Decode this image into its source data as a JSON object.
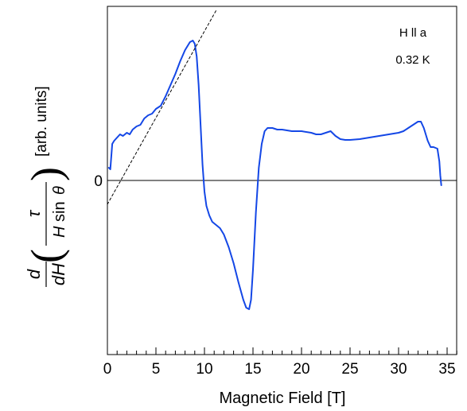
{
  "chart_data": {
    "type": "line",
    "xlabel": "Magnetic Field [T]",
    "ylabel": {
      "d": "d",
      "dH": "dH",
      "tau": "τ",
      "H": "H",
      "sin": "sin",
      "theta": "θ",
      "units": "[arb. units]"
    },
    "xlim": [
      0,
      36
    ],
    "ylim": [
      -1.0,
      1.0
    ],
    "x_ticks": [
      0,
      5,
      10,
      15,
      20,
      25,
      30,
      35
    ],
    "x_tick_labels": [
      "0",
      "5",
      "10",
      "15",
      "20",
      "25",
      "30",
      "35"
    ],
    "y_tick_labels": [
      {
        "value": 0,
        "label": "0"
      }
    ],
    "zero_line": true,
    "grid": false,
    "annotations": [
      "H ll a",
      "0.32 K"
    ],
    "series": [
      {
        "color": "#1447e6",
        "style": "solid",
        "x": [
          0.15,
          0.3,
          0.5,
          0.7,
          1.0,
          1.3,
          1.6,
          2.0,
          2.3,
          2.6,
          3.0,
          3.4,
          3.8,
          4.2,
          4.6,
          5.0,
          5.5,
          6.0,
          6.5,
          7.0,
          7.5,
          8.0,
          8.5,
          8.8,
          9.0,
          9.2,
          9.4,
          9.6,
          9.8,
          10.0,
          10.2,
          10.5,
          10.8,
          11.2,
          11.6,
          12.0,
          12.5,
          13.0,
          13.5,
          14.0,
          14.3,
          14.6,
          14.8,
          15.0,
          15.3,
          15.6,
          15.9,
          16.2,
          16.5,
          17.0,
          17.5,
          18.0,
          19.0,
          20.0,
          21.0,
          21.5,
          22.0,
          22.5,
          23.0,
          23.5,
          24.0,
          24.5,
          25.0,
          26.0,
          27.0,
          28.0,
          29.0,
          30.0,
          30.5,
          31.0,
          31.5,
          32.0,
          32.3,
          32.6,
          33.0,
          33.3,
          33.6,
          34.0,
          34.2,
          34.3,
          34.4
        ],
        "y": [
          0.08,
          0.07,
          0.23,
          0.25,
          0.27,
          0.29,
          0.28,
          0.3,
          0.29,
          0.32,
          0.34,
          0.35,
          0.39,
          0.41,
          0.42,
          0.45,
          0.47,
          0.53,
          0.6,
          0.67,
          0.75,
          0.82,
          0.87,
          0.88,
          0.86,
          0.78,
          0.6,
          0.35,
          0.1,
          -0.07,
          -0.16,
          -0.22,
          -0.26,
          -0.28,
          -0.3,
          -0.34,
          -0.42,
          -0.52,
          -0.64,
          -0.75,
          -0.8,
          -0.81,
          -0.75,
          -0.56,
          -0.2,
          0.08,
          0.23,
          0.31,
          0.33,
          0.33,
          0.32,
          0.32,
          0.31,
          0.31,
          0.3,
          0.29,
          0.29,
          0.3,
          0.31,
          0.28,
          0.26,
          0.255,
          0.255,
          0.26,
          0.27,
          0.28,
          0.29,
          0.3,
          0.31,
          0.33,
          0.35,
          0.37,
          0.37,
          0.33,
          0.25,
          0.21,
          0.21,
          0.2,
          0.12,
          0.03,
          -0.03
        ]
      },
      {
        "color": "#000000",
        "style": "dashed",
        "x": [
          0.0,
          11.3
        ],
        "y": [
          -0.15,
          1.08
        ]
      }
    ]
  }
}
